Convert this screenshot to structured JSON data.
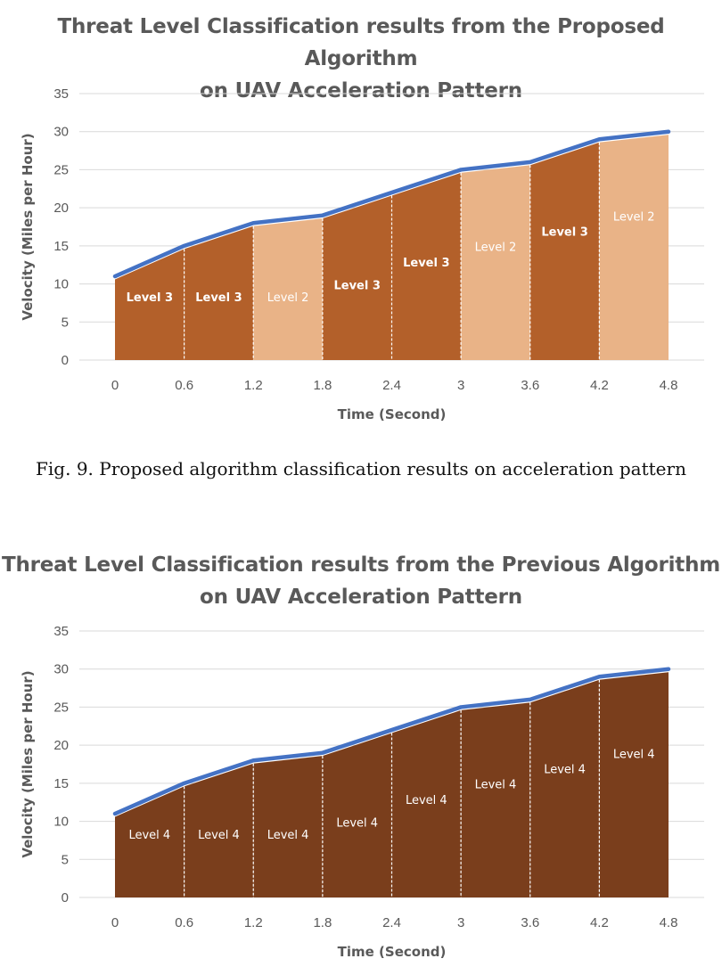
{
  "figure_caption": "Fig. 9.  Proposed algorithm classification results on acceleration pattern",
  "colors": {
    "velocity_line": "#4472C4",
    "level2": "#E9B387",
    "level3": "#B3602A",
    "level4": "#7A3E1C",
    "gridline": "#D9D9D9",
    "text": "#595959"
  },
  "chart_data": [
    {
      "type": "area",
      "title": "Threat Level Classification results from the Proposed Algorithm on UAV Acceleration Pattern",
      "title_lines": [
        "Threat Level Classification results from the Proposed Algorithm",
        "on UAV Acceleration Pattern"
      ],
      "xlabel": "Time (Second)",
      "ylabel": "Velocity (Miles per Hour)",
      "x": [
        0,
        0.6,
        1.2,
        1.8,
        2.4,
        3,
        3.6,
        4.2,
        4.8
      ],
      "x_tick_labels": [
        "0",
        "0.6",
        "1.2",
        "1.8",
        "2.4",
        "3",
        "3.6",
        "4.2",
        "4.8"
      ],
      "y_ticks": [
        "0",
        "5",
        "10",
        "15",
        "20",
        "25",
        "30",
        "35"
      ],
      "ylim": [
        0,
        35
      ],
      "grid": true,
      "series": [
        {
          "values": [
            11,
            15,
            18,
            19,
            22,
            25,
            26,
            29,
            30
          ]
        }
      ],
      "segments": [
        {
          "from": 0,
          "to": 0.6,
          "label": "Level 3",
          "level": 3
        },
        {
          "from": 0.6,
          "to": 1.2,
          "label": "Level 3",
          "level": 3
        },
        {
          "from": 1.2,
          "to": 1.8,
          "label": "Level 2",
          "level": 2
        },
        {
          "from": 1.8,
          "to": 2.4,
          "label": "Level 3",
          "level": 3
        },
        {
          "from": 2.4,
          "to": 3,
          "label": "Level 3",
          "level": 3
        },
        {
          "from": 3,
          "to": 3.6,
          "label": "Level 2",
          "level": 2
        },
        {
          "from": 3.6,
          "to": 4.2,
          "label": "Level 3",
          "level": 3
        },
        {
          "from": 4.2,
          "to": 4.8,
          "label": "Level 2",
          "level": 2
        }
      ]
    },
    {
      "type": "area",
      "title": "Threat Level Classification results from the Previous Algorithm on UAV Acceleration Pattern",
      "title_lines": [
        "Threat Level Classification results from the Previous Algorithm",
        "on UAV Acceleration Pattern"
      ],
      "xlabel": "Time (Second)",
      "ylabel": "Velocity (Miles per Hour)",
      "x": [
        0,
        0.6,
        1.2,
        1.8,
        2.4,
        3,
        3.6,
        4.2,
        4.8
      ],
      "x_tick_labels": [
        "0",
        "0.6",
        "1.2",
        "1.8",
        "2.4",
        "3",
        "3.6",
        "4.2",
        "4.8"
      ],
      "y_ticks": [
        "0",
        "5",
        "10",
        "15",
        "20",
        "25",
        "30",
        "35"
      ],
      "ylim": [
        0,
        35
      ],
      "grid": true,
      "series": [
        {
          "values": [
            11,
            15,
            18,
            19,
            22,
            25,
            26,
            29,
            30
          ]
        }
      ],
      "segments": [
        {
          "from": 0,
          "to": 0.6,
          "label": "Level 4",
          "level": 4
        },
        {
          "from": 0.6,
          "to": 1.2,
          "label": "Level 4",
          "level": 4
        },
        {
          "from": 1.2,
          "to": 1.8,
          "label": "Level 4",
          "level": 4
        },
        {
          "from": 1.8,
          "to": 2.4,
          "label": "Level 4",
          "level": 4
        },
        {
          "from": 2.4,
          "to": 3,
          "label": "Level 4",
          "level": 4
        },
        {
          "from": 3,
          "to": 3.6,
          "label": "Level 4",
          "level": 4
        },
        {
          "from": 3.6,
          "to": 4.2,
          "label": "Level 4",
          "level": 4
        },
        {
          "from": 4.2,
          "to": 4.8,
          "label": "Level 4",
          "level": 4
        }
      ]
    }
  ]
}
